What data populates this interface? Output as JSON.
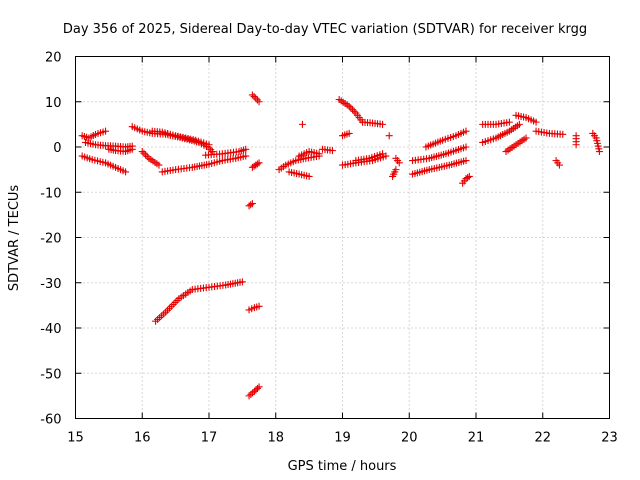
{
  "chart_data": {
    "type": "scatter",
    "title": "Day 356 of 2025, Sidereal Day-to-day VTEC variation (SDTVAR) for receiver krgg",
    "xlabel": "GPS time / hours",
    "ylabel": "SDTVAR / TECUs",
    "xlim": [
      15,
      23
    ],
    "ylim": [
      -60,
      20
    ],
    "xticks": [
      15,
      16,
      17,
      18,
      19,
      20,
      21,
      22,
      23
    ],
    "yticks": [
      -60,
      -50,
      -40,
      -30,
      -20,
      -10,
      0,
      10,
      20
    ],
    "xtick_labels": [
      "15",
      "16",
      "17",
      "18",
      "19",
      "20",
      "21",
      "22",
      "23"
    ],
    "ytick_labels": [
      "-60",
      "-50",
      "-40",
      "-30",
      "-20",
      "-10",
      "0",
      "10",
      "20"
    ],
    "grid": true,
    "marker": "+",
    "color": "#e60000",
    "segments": [
      {
        "x": [
          15.1,
          15.2,
          15.3,
          15.45
        ],
        "y": [
          2.5,
          2.0,
          2.8,
          3.5
        ]
      },
      {
        "x": [
          15.1,
          15.25,
          15.45,
          15.6,
          15.75
        ],
        "y": [
          -2.0,
          -2.8,
          -3.5,
          -4.5,
          -5.5
        ]
      },
      {
        "x": [
          15.15,
          15.3,
          15.45,
          15.6,
          15.75,
          15.85
        ],
        "y": [
          1.0,
          0.5,
          0.3,
          0.2,
          0.0,
          0.2
        ]
      },
      {
        "x": [
          15.5,
          15.6,
          15.75,
          15.85
        ],
        "y": [
          -0.5,
          -0.8,
          -1.0,
          -0.5
        ]
      },
      {
        "x": [
          15.85,
          16.0,
          16.15,
          16.35,
          16.6,
          16.85,
          17.0,
          17.05
        ],
        "y": [
          4.5,
          3.5,
          3.0,
          2.8,
          2.0,
          1.0,
          -0.2,
          -1.0
        ]
      },
      {
        "x": [
          16.15,
          16.3,
          16.5,
          16.8,
          17.0
        ],
        "y": [
          3.5,
          3.3,
          2.5,
          1.5,
          0.5
        ]
      },
      {
        "x": [
          16.0,
          16.1,
          16.25
        ],
        "y": [
          -1.0,
          -2.5,
          -4.0
        ]
      },
      {
        "x": [
          16.3,
          16.5,
          16.75,
          17.0,
          17.2,
          17.4,
          17.55
        ],
        "y": [
          -5.5,
          -5.0,
          -4.5,
          -3.8,
          -3.0,
          -2.5,
          -2.0
        ]
      },
      {
        "x": [
          16.95,
          17.2,
          17.45,
          17.55
        ],
        "y": [
          -1.8,
          -1.5,
          -1.0,
          -0.5
        ]
      },
      {
        "x": [
          17.65,
          17.7,
          17.75
        ],
        "y": [
          11.5,
          10.8,
          10.0
        ]
      },
      {
        "x": [
          17.65,
          17.7,
          17.75
        ],
        "y": [
          -4.5,
          -4.0,
          -3.5
        ]
      },
      {
        "x": [
          17.6,
          17.65
        ],
        "y": [
          -13.0,
          -12.5
        ]
      },
      {
        "x": [
          16.2,
          16.35,
          16.55,
          16.75,
          17.0,
          17.25,
          17.5
        ],
        "y": [
          -38.5,
          -36.5,
          -33.5,
          -31.5,
          -31.0,
          -30.5,
          -29.8
        ]
      },
      {
        "x": [
          17.6,
          17.68,
          17.75
        ],
        "y": [
          -36.0,
          -35.5,
          -35.2
        ]
      },
      {
        "x": [
          17.6,
          17.68,
          17.75
        ],
        "y": [
          -55.0,
          -54.0,
          -53.0
        ]
      },
      {
        "x": [
          18.05,
          18.15,
          18.3,
          18.45,
          18.65
        ],
        "y": [
          -5.0,
          -4.0,
          -3.0,
          -2.5,
          -2.0
        ]
      },
      {
        "x": [
          18.2,
          18.35,
          18.5
        ],
        "y": [
          -5.5,
          -6.0,
          -6.5
        ]
      },
      {
        "x": [
          18.35,
          18.5,
          18.65
        ],
        "y": [
          -2.0,
          -1.0,
          -1.5
        ]
      },
      {
        "x": [
          18.4
        ],
        "y": [
          5.0
        ]
      },
      {
        "x": [
          18.7,
          18.85
        ],
        "y": [
          -0.5,
          -0.8
        ]
      },
      {
        "x": [
          18.95,
          19.1,
          19.2,
          19.3
        ],
        "y": [
          10.5,
          9.0,
          7.5,
          5.5
        ]
      },
      {
        "x": [
          19.3,
          19.45,
          19.6
        ],
        "y": [
          5.5,
          5.3,
          5.0
        ]
      },
      {
        "x": [
          19.0,
          19.1
        ],
        "y": [
          2.5,
          3.0
        ]
      },
      {
        "x": [
          19.0,
          19.2,
          19.45,
          19.65
        ],
        "y": [
          -4.0,
          -3.5,
          -3.0,
          -2.0
        ]
      },
      {
        "x": [
          19.2,
          19.4,
          19.6
        ],
        "y": [
          -3.0,
          -2.5,
          -1.5
        ]
      },
      {
        "x": [
          19.8,
          19.85
        ],
        "y": [
          -2.5,
          -3.5
        ]
      },
      {
        "x": [
          19.75,
          19.8
        ],
        "y": [
          -6.5,
          -5.0
        ]
      },
      {
        "x": [
          19.7
        ],
        "y": [
          2.5
        ]
      },
      {
        "x": [
          20.05,
          20.3,
          20.55,
          20.85
        ],
        "y": [
          -3.0,
          -2.5,
          -1.5,
          0.0
        ]
      },
      {
        "x": [
          20.05,
          20.3,
          20.6,
          20.85
        ],
        "y": [
          -6.0,
          -5.0,
          -4.0,
          -3.0
        ]
      },
      {
        "x": [
          20.25,
          20.5,
          20.7,
          20.85
        ],
        "y": [
          0.0,
          1.5,
          2.5,
          3.5
        ]
      },
      {
        "x": [
          20.8,
          20.85,
          20.9
        ],
        "y": [
          -8.0,
          -7.0,
          -6.5
        ]
      },
      {
        "x": [
          21.1,
          21.3,
          21.5,
          21.65
        ],
        "y": [
          1.0,
          2.0,
          3.5,
          5.0
        ]
      },
      {
        "x": [
          21.1,
          21.3,
          21.5
        ],
        "y": [
          5.0,
          5.0,
          5.5
        ]
      },
      {
        "x": [
          21.45,
          21.6,
          21.75
        ],
        "y": [
          -1.0,
          0.5,
          2.0
        ]
      },
      {
        "x": [
          21.6,
          21.75,
          21.9
        ],
        "y": [
          7.0,
          6.5,
          5.5
        ]
      },
      {
        "x": [
          21.9,
          22.1,
          22.3
        ],
        "y": [
          3.5,
          3.0,
          2.8
        ]
      },
      {
        "x": [
          22.2,
          22.25
        ],
        "y": [
          -3.0,
          -4.0
        ]
      },
      {
        "x": [
          22.5,
          22.5
        ],
        "y": [
          2.5,
          0.5
        ]
      },
      {
        "x": [
          22.75,
          22.8,
          22.85
        ],
        "y": [
          3.0,
          2.0,
          -1.0
        ]
      }
    ]
  }
}
